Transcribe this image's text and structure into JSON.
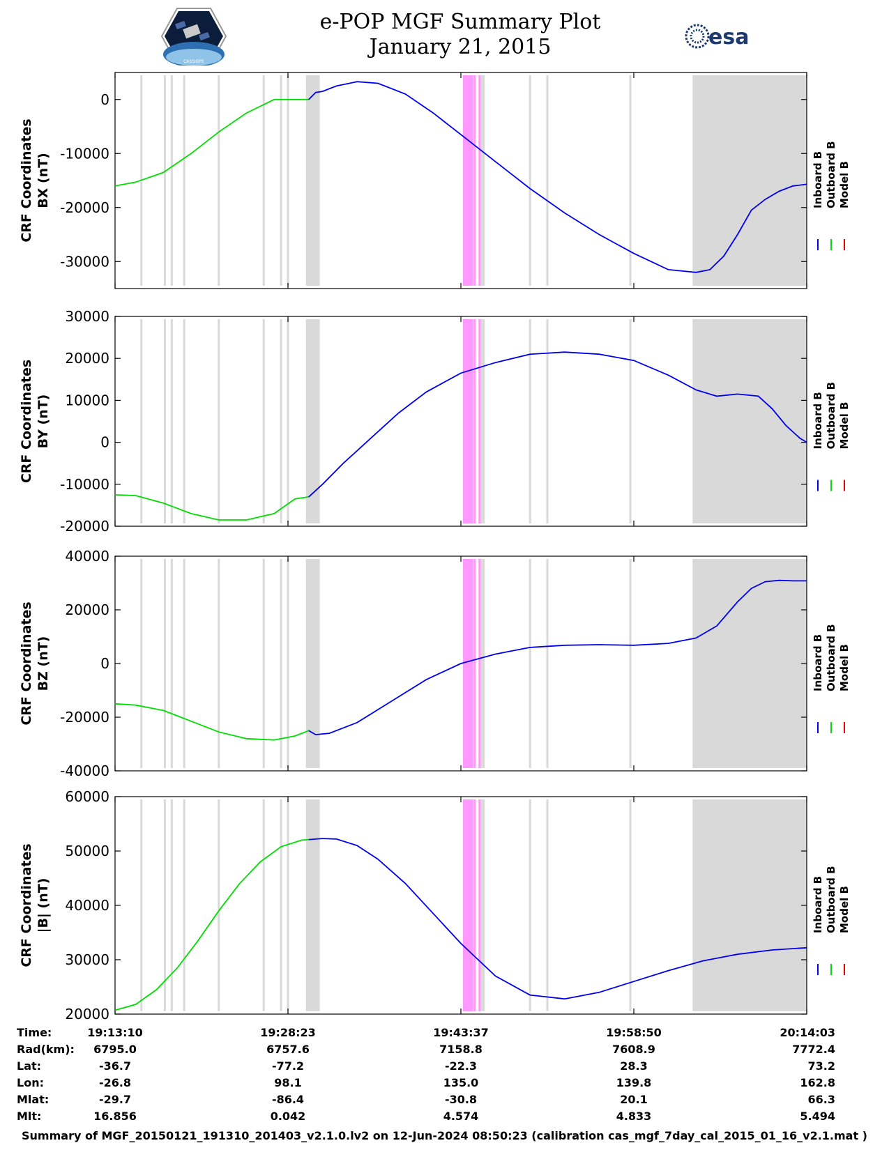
{
  "title": {
    "line1": "e-POP MGF Summary Plot",
    "line2": "January 21, 2015"
  },
  "logos": {
    "left": "cassiope-mission-logo",
    "right": "esa-logo",
    "right_text": "esa",
    "left_text": "CASSIOPE"
  },
  "colors": {
    "inboard": "#0000ee",
    "outboard": "#00dd00",
    "model": "#ee0000",
    "gray_shade": "#d9d9d9",
    "magenta_shade": "#ff99ff"
  },
  "legend": [
    "Inboard B",
    "Outboard B",
    "Model B"
  ],
  "chart_data": [
    {
      "type": "line",
      "ylabel_line1": "CRF Coordinates",
      "ylabel_line2": "BX (nT)",
      "ylim": [
        -35000,
        5000
      ],
      "yticks": [
        0,
        -10000,
        -20000,
        -30000
      ],
      "ytick_labels": [
        "0",
        "-10000",
        "-20000",
        "-30000"
      ],
      "series": [
        {
          "name": "Outboard B",
          "x": [
            0,
            0.03,
            0.07,
            0.11,
            0.15,
            0.19,
            0.23,
            0.26,
            0.28
          ],
          "y": [
            -16000,
            -15300,
            -13500,
            -10000,
            -6000,
            -2500,
            0,
            0,
            0
          ]
        },
        {
          "name": "Inboard B",
          "x": [
            0.28,
            0.29,
            0.3,
            0.32,
            0.35,
            0.38,
            0.42,
            0.46,
            0.5,
            0.55,
            0.6,
            0.65,
            0.7,
            0.75,
            0.8,
            0.84,
            0.86,
            0.88,
            0.9,
            0.92,
            0.94,
            0.96,
            0.98,
            1.0
          ],
          "y": [
            0,
            1300,
            1500,
            2500,
            3300,
            3000,
            1000,
            -2500,
            -6500,
            -11500,
            -16500,
            -21000,
            -25000,
            -28500,
            -31500,
            -32000,
            -31500,
            -29000,
            -25000,
            -20500,
            -18500,
            -17000,
            -16000,
            -15700
          ]
        }
      ]
    },
    {
      "type": "line",
      "ylabel_line1": "CRF Coordinates",
      "ylabel_line2": "BY (nT)",
      "ylim": [
        -20000,
        30000
      ],
      "yticks": [
        30000,
        20000,
        10000,
        0,
        -10000,
        -20000
      ],
      "ytick_labels": [
        "30000",
        "20000",
        "10000",
        "0",
        "-10000",
        "-20000"
      ],
      "series": [
        {
          "name": "Outboard B",
          "x": [
            0,
            0.03,
            0.07,
            0.11,
            0.15,
            0.19,
            0.23,
            0.26,
            0.28
          ],
          "y": [
            -12500,
            -12700,
            -14500,
            -17000,
            -18500,
            -18500,
            -17000,
            -13500,
            -13000
          ]
        },
        {
          "name": "Inboard B",
          "x": [
            0.28,
            0.3,
            0.33,
            0.37,
            0.41,
            0.45,
            0.5,
            0.52,
            0.55,
            0.6,
            0.65,
            0.7,
            0.75,
            0.8,
            0.84,
            0.87,
            0.9,
            0.93,
            0.95,
            0.97,
            0.99,
            1.0
          ],
          "y": [
            -13000,
            -10000,
            -5000,
            1000,
            7000,
            12000,
            16500,
            17500,
            19000,
            21000,
            21500,
            21000,
            19500,
            16000,
            12500,
            11000,
            11500,
            11000,
            8000,
            4000,
            1000,
            0
          ]
        }
      ]
    },
    {
      "type": "line",
      "ylabel_line1": "CRF Coordinates",
      "ylabel_line2": "BZ (nT)",
      "ylim": [
        -40000,
        40000
      ],
      "yticks": [
        40000,
        20000,
        0,
        -20000,
        -40000
      ],
      "ytick_labels": [
        "40000",
        "20000",
        "0",
        "-20000",
        "-40000"
      ],
      "series": [
        {
          "name": "Outboard B",
          "x": [
            0,
            0.03,
            0.07,
            0.11,
            0.15,
            0.19,
            0.23,
            0.26,
            0.28
          ],
          "y": [
            -15000,
            -15500,
            -17500,
            -21500,
            -25500,
            -28000,
            -28500,
            -27000,
            -25000
          ]
        },
        {
          "name": "Inboard B",
          "x": [
            0.28,
            0.29,
            0.31,
            0.35,
            0.4,
            0.45,
            0.5,
            0.55,
            0.6,
            0.65,
            0.7,
            0.75,
            0.8,
            0.84,
            0.87,
            0.9,
            0.92,
            0.94,
            0.96,
            0.98,
            1.0
          ],
          "y": [
            -25000,
            -26500,
            -26000,
            -22000,
            -14000,
            -6000,
            0,
            3500,
            6000,
            6800,
            7000,
            6800,
            7500,
            9500,
            14000,
            23000,
            28000,
            30500,
            31000,
            30800,
            30800
          ]
        }
      ]
    },
    {
      "type": "line",
      "ylabel_line1": "CRF Coordinates",
      "ylabel_line2": "|B| (nT)",
      "ylim": [
        20000,
        60000
      ],
      "yticks": [
        60000,
        50000,
        40000,
        30000,
        20000
      ],
      "ytick_labels": [
        "60000",
        "50000",
        "40000",
        "30000",
        "20000"
      ],
      "series": [
        {
          "name": "Outboard B",
          "x": [
            0,
            0.03,
            0.06,
            0.09,
            0.12,
            0.15,
            0.18,
            0.21,
            0.24,
            0.27,
            0.28
          ],
          "y": [
            20700,
            21800,
            24500,
            28500,
            33500,
            39000,
            44000,
            48000,
            50800,
            52000,
            52100
          ]
        },
        {
          "name": "Inboard B",
          "x": [
            0.28,
            0.3,
            0.32,
            0.35,
            0.38,
            0.42,
            0.46,
            0.5,
            0.55,
            0.6,
            0.65,
            0.7,
            0.75,
            0.8,
            0.85,
            0.9,
            0.95,
            1.0
          ],
          "y": [
            52100,
            52300,
            52200,
            51000,
            48500,
            44000,
            38500,
            33000,
            27000,
            23500,
            22800,
            24000,
            26000,
            28000,
            29800,
            31000,
            31800,
            32200
          ]
        }
      ]
    }
  ],
  "shade_regions": {
    "gray_lines": [
      0.038,
      0.072,
      0.082,
      0.1,
      0.15,
      0.215,
      0.24,
      0.25
    ],
    "gray_blocks": [
      [
        0.276,
        0.296
      ],
      [
        0.835,
        1.0
      ]
    ],
    "gray_lines_mid": [
      0.52,
      0.53,
      0.533,
      0.6,
      0.625,
      0.745
    ],
    "magenta_blocks": [
      [
        0.503,
        0.518
      ]
    ],
    "magenta_lines": [
      0.52,
      0.527
    ]
  },
  "time_table": {
    "row_labels": [
      "Time:",
      "Rad(km):",
      "Lat:",
      "Lon:",
      "Mlat:",
      "Mlt:"
    ],
    "columns": [
      [
        "19:13:10",
        "6795.0",
        "-36.7",
        "-26.8",
        "-29.7",
        "16.856"
      ],
      [
        "19:28:23",
        "6757.6",
        "-77.2",
        "98.1",
        "-86.4",
        "0.042"
      ],
      [
        "19:43:37",
        "7158.8",
        "-22.3",
        "135.0",
        "-30.8",
        "4.574"
      ],
      [
        "19:58:50",
        "7608.9",
        "28.3",
        "139.8",
        "20.1",
        "4.833"
      ],
      [
        "20:14:03",
        "7772.4",
        "73.2",
        "162.8",
        "66.3",
        "5.494"
      ]
    ]
  },
  "footer": "Summary of MGF_20150121_191310_201403_v2.1.0.lv2 on 12-Jun-2024 08:50:23 (calibration cas_mgf_7day_cal_2015_01_16_v2.1.mat )"
}
